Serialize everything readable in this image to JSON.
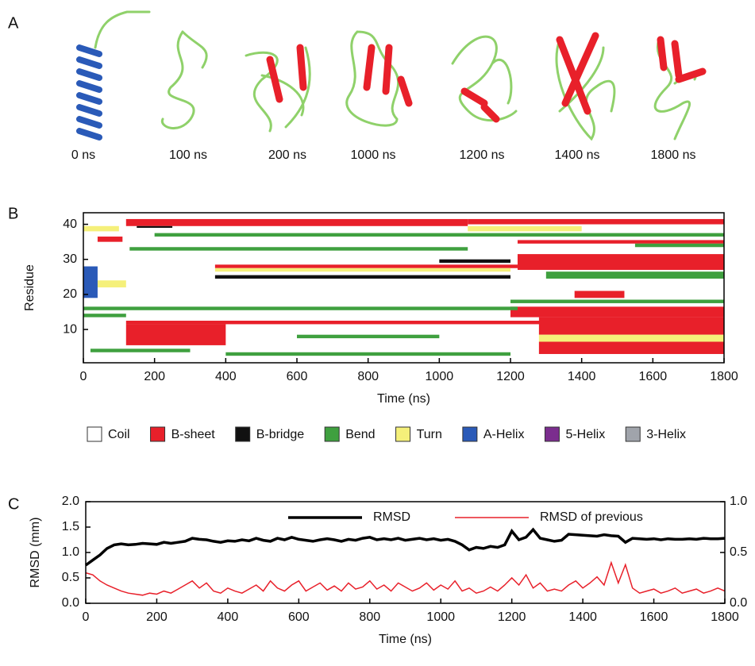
{
  "panel_a": {
    "label": "A",
    "snapshots": [
      "0 ns",
      "100 ns",
      "200 ns",
      "1000 ns",
      "1200 ns",
      "1400 ns",
      "1800 ns"
    ]
  },
  "chart_data": [
    {
      "type": "dssp",
      "panel_label": "B",
      "xlabel": "Time (ns)",
      "ylabel": "Residue",
      "xlim": [
        0,
        1800
      ],
      "xticks": [
        0,
        200,
        400,
        600,
        800,
        1000,
        1200,
        1400,
        1600,
        1800
      ],
      "ylim": [
        0.5,
        43.3
      ],
      "yticks": [
        10,
        20,
        30,
        40
      ],
      "series": [
        {
          "name": "Coil",
          "color": "#ffffff",
          "segments": []
        },
        {
          "name": "B-sheet",
          "color": "#e8202a",
          "segments": [
            [
              120,
              1080,
              39.5,
              41.5
            ],
            [
              1080,
              1800,
              40,
              41.5
            ],
            [
              40,
              110,
              35,
              36.5
            ],
            [
              370,
              1220,
              27.5,
              28.5
            ],
            [
              1220,
              1800,
              27,
              31.5
            ],
            [
              1220,
              1800,
              34.5,
              35.5
            ],
            [
              120,
              1800,
              11.5,
              12.5
            ],
            [
              120,
              400,
              5.5,
              11.5
            ],
            [
              1200,
              1800,
              13.5,
              16.5
            ],
            [
              1280,
              1800,
              8.5,
              13.5
            ],
            [
              1280,
              1800,
              3,
              6.5
            ],
            [
              1380,
              1520,
              19,
              21
            ]
          ]
        },
        {
          "name": "B-bridge",
          "color": "#111111",
          "segments": [
            [
              370,
              1200,
              24.5,
              25.5
            ],
            [
              150,
              250,
              39,
              39.5
            ],
            [
              1000,
              1200,
              29,
              30
            ]
          ]
        },
        {
          "name": "Bend",
          "color": "#3fa03f",
          "segments": [
            [
              0,
              1220,
              15.5,
              16.5
            ],
            [
              1200,
              1800,
              17.5,
              18.5
            ],
            [
              200,
              1800,
              36.5,
              37.5
            ],
            [
              130,
              1080,
              32.5,
              33.5
            ],
            [
              1300,
              1800,
              24.5,
              26.5
            ],
            [
              20,
              300,
              3.5,
              4.5
            ],
            [
              400,
              1200,
              2.5,
              3.5
            ],
            [
              0,
              120,
              13.5,
              14.5
            ],
            [
              1550,
              1800,
              33.5,
              34.5
            ],
            [
              600,
              1000,
              7.5,
              8.5
            ]
          ]
        },
        {
          "name": "Turn",
          "color": "#f5f07a",
          "segments": [
            [
              1080,
              1400,
              38,
              39.5
            ],
            [
              0,
              100,
              38,
              39.5
            ],
            [
              370,
              1200,
              26.5,
              27.5
            ],
            [
              1280,
              1800,
              6.5,
              8.5
            ],
            [
              30,
              120,
              22,
              24
            ]
          ]
        },
        {
          "name": "A-Helix",
          "color": "#2a5ab8",
          "segments": [
            [
              0,
              40,
              19,
              28
            ]
          ]
        },
        {
          "name": "5-Helix",
          "color": "#7b2d8e",
          "segments": []
        },
        {
          "name": "3-Helix",
          "color": "#a0a4ab",
          "segments": []
        }
      ]
    },
    {
      "type": "line",
      "panel_label": "C",
      "xlabel": "Time (ns)",
      "ylabel": "RMSD (mm)",
      "xlim": [
        0,
        1800
      ],
      "xticks": [
        0,
        200,
        400,
        600,
        800,
        1000,
        1200,
        1400,
        1600,
        1800
      ],
      "ylim": [
        0,
        2
      ],
      "yticks": [
        {
          "value": 0,
          "label": "0.0"
        },
        0.5,
        {
          "value": 1,
          "label": "1.0"
        },
        1.5,
        {
          "value": 2,
          "label": "2.0"
        }
      ],
      "y2lim": [
        0,
        1
      ],
      "y2ticks": [
        {
          "value": 0,
          "label": "0.0"
        },
        0.5,
        {
          "value": 1,
          "label": "1.0"
        }
      ],
      "x": [
        0,
        20,
        40,
        60,
        80,
        100,
        120,
        140,
        160,
        180,
        200,
        220,
        240,
        260,
        280,
        300,
        320,
        340,
        360,
        380,
        400,
        420,
        440,
        460,
        480,
        500,
        520,
        540,
        560,
        580,
        600,
        620,
        640,
        660,
        680,
        700,
        720,
        740,
        760,
        780,
        800,
        820,
        840,
        860,
        880,
        900,
        920,
        940,
        960,
        980,
        1000,
        1020,
        1040,
        1060,
        1080,
        1100,
        1120,
        1140,
        1160,
        1180,
        1200,
        1220,
        1240,
        1260,
        1280,
        1300,
        1320,
        1340,
        1360,
        1380,
        1400,
        1420,
        1440,
        1460,
        1480,
        1500,
        1520,
        1540,
        1560,
        1580,
        1600,
        1620,
        1640,
        1660,
        1680,
        1700,
        1720,
        1740,
        1760,
        1780,
        1800
      ],
      "series": [
        {
          "name": "RMSD",
          "color": "#000000",
          "values": [
            0.75,
            0.85,
            0.95,
            1.08,
            1.15,
            1.17,
            1.15,
            1.16,
            1.18,
            1.17,
            1.16,
            1.2,
            1.18,
            1.2,
            1.22,
            1.28,
            1.26,
            1.25,
            1.22,
            1.2,
            1.23,
            1.22,
            1.25,
            1.23,
            1.28,
            1.24,
            1.22,
            1.28,
            1.25,
            1.3,
            1.26,
            1.24,
            1.22,
            1.25,
            1.27,
            1.25,
            1.22,
            1.26,
            1.24,
            1.28,
            1.3,
            1.25,
            1.27,
            1.25,
            1.28,
            1.24,
            1.26,
            1.28,
            1.25,
            1.27,
            1.24,
            1.26,
            1.22,
            1.15,
            1.05,
            1.1,
            1.08,
            1.12,
            1.1,
            1.15,
            1.42,
            1.25,
            1.3,
            1.45,
            1.28,
            1.25,
            1.22,
            1.24,
            1.36,
            1.35,
            1.34,
            1.33,
            1.32,
            1.35,
            1.33,
            1.32,
            1.2,
            1.28,
            1.27,
            1.26,
            1.27,
            1.25,
            1.27,
            1.26,
            1.26,
            1.27,
            1.26,
            1.28,
            1.27,
            1.27,
            1.28
          ]
        },
        {
          "name": "RMSD  of previous",
          "color": "#e8202a",
          "axis": "y2",
          "values": [
            0.3,
            0.28,
            0.22,
            0.18,
            0.15,
            0.12,
            0.1,
            0.09,
            0.08,
            0.1,
            0.09,
            0.12,
            0.1,
            0.14,
            0.18,
            0.22,
            0.15,
            0.2,
            0.12,
            0.1,
            0.15,
            0.12,
            0.1,
            0.14,
            0.18,
            0.12,
            0.22,
            0.15,
            0.12,
            0.18,
            0.22,
            0.12,
            0.16,
            0.2,
            0.13,
            0.17,
            0.12,
            0.2,
            0.14,
            0.16,
            0.22,
            0.14,
            0.18,
            0.12,
            0.2,
            0.16,
            0.12,
            0.15,
            0.2,
            0.13,
            0.18,
            0.14,
            0.22,
            0.12,
            0.15,
            0.1,
            0.12,
            0.16,
            0.12,
            0.18,
            0.25,
            0.18,
            0.28,
            0.15,
            0.2,
            0.12,
            0.14,
            0.12,
            0.18,
            0.22,
            0.15,
            0.2,
            0.26,
            0.18,
            0.4,
            0.2,
            0.38,
            0.15,
            0.1,
            0.12,
            0.14,
            0.1,
            0.12,
            0.15,
            0.1,
            0.12,
            0.14,
            0.1,
            0.12,
            0.15,
            0.12
          ]
        }
      ]
    }
  ]
}
